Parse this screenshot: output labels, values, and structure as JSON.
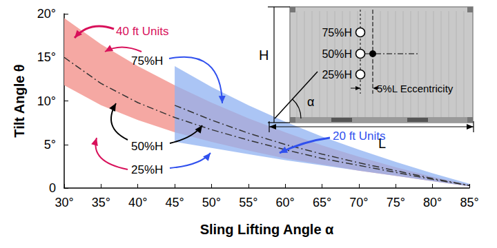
{
  "chart_data": {
    "type": "band",
    "x_label": "Sling Lifting Angle α",
    "y_label": "Tilt Angle θ",
    "xlim": [
      30,
      85
    ],
    "xticks": [
      {
        "value": 30,
        "label": "30°"
      },
      {
        "value": 35,
        "label": "35°"
      },
      {
        "value": 40,
        "label": "40°"
      },
      {
        "value": 45,
        "label": "45°"
      },
      {
        "value": 50,
        "label": "50°"
      },
      {
        "value": 55,
        "label": "55°"
      },
      {
        "value": 60,
        "label": "60°"
      },
      {
        "value": 65,
        "label": "65°"
      },
      {
        "value": 70,
        "label": "70°"
      },
      {
        "value": 75,
        "label": "75°"
      },
      {
        "value": 80,
        "label": "80°"
      },
      {
        "value": 85,
        "label": "85°"
      }
    ],
    "ylim": [
      0,
      20
    ],
    "yticks": [
      {
        "value": 0,
        "label": "0"
      },
      {
        "value": 5,
        "label": "5°"
      },
      {
        "value": 10,
        "label": "10°"
      },
      {
        "value": 15,
        "label": "15°"
      },
      {
        "value": 20,
        "label": "20°"
      }
    ],
    "grid": false,
    "series": [
      {
        "name": "40 ft Units",
        "color": "#f4a39e",
        "x": [
          30,
          35,
          40,
          45,
          50,
          55,
          60,
          65,
          70,
          75,
          80,
          85
        ],
        "curves": [
          {
            "label": "75%H",
            "values": [
              19.5,
              16.5,
              14.0,
              11.8,
              9.8,
              8.0,
              6.4,
              4.9,
              3.6,
              2.4,
              1.3,
              0.4
            ]
          },
          {
            "label": "50%H",
            "line_style": "dashdot",
            "values": [
              15.0,
              12.0,
              9.8,
              8.1,
              6.7,
              5.5,
              4.4,
              3.4,
              2.6,
              1.8,
              1.0,
              0.3
            ]
          },
          {
            "label": "25%H",
            "values": [
              11.8,
              9.5,
              7.8,
              6.4,
              5.3,
              4.3,
              3.4,
              2.7,
              2.0,
              1.4,
              0.8,
              0.2
            ]
          }
        ]
      },
      {
        "name": "20 ft Units",
        "color": "#8fb2f2",
        "x": [
          45,
          50,
          55,
          60,
          65,
          70,
          75,
          80,
          85
        ],
        "curves": [
          {
            "label": "75%H",
            "values": [
              14.0,
              11.6,
              9.5,
              7.6,
              5.9,
              4.4,
              3.0,
              1.7,
              0.5
            ]
          },
          {
            "label": "50%H",
            "line_style": "dashdot",
            "values": [
              9.5,
              7.8,
              6.3,
              5.0,
              3.9,
              2.9,
              2.0,
              1.1,
              0.3
            ]
          },
          {
            "label": "25%H",
            "values": [
              5.3,
              4.6,
              3.9,
              3.2,
              2.6,
              2.0,
              1.4,
              0.8,
              0.2
            ]
          }
        ]
      }
    ],
    "inset": {
      "height_label": "H",
      "length_label": "L",
      "angle_label": "α",
      "hole_labels": [
        "75%H",
        "50%H",
        "25%H"
      ],
      "eccentricity_label": "5%L Eccentricity"
    }
  }
}
